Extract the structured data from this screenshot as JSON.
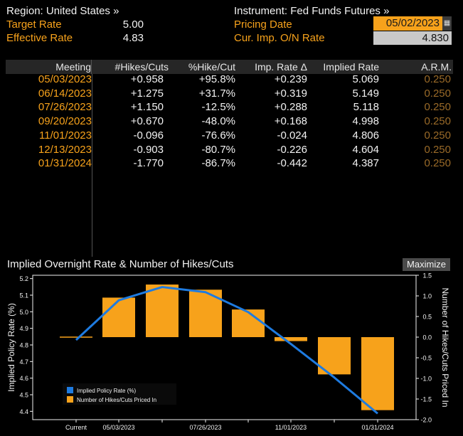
{
  "header": {
    "region": "Region: United States »",
    "instrument": "Instrument: Fed Funds Futures »",
    "target_rate_label": "Target Rate",
    "target_rate_value": "5.00",
    "effective_rate_label": "Effective Rate",
    "effective_rate_value": "4.83",
    "pricing_date_label": "Pricing Date",
    "pricing_date_value": "05/02/2023",
    "cur_imp_label": "Cur. Imp. O/N Rate",
    "cur_imp_value": "4.830"
  },
  "table": {
    "columns": [
      "Meeting",
      "#Hikes/Cuts",
      "%Hike/Cut",
      "Imp. Rate Δ",
      "Implied Rate",
      "A.R.M."
    ],
    "rows": [
      [
        "05/03/2023",
        "+0.958",
        "+95.8%",
        "+0.239",
        "5.069",
        "0.250"
      ],
      [
        "06/14/2023",
        "+1.275",
        "+31.7%",
        "+0.319",
        "5.149",
        "0.250"
      ],
      [
        "07/26/2023",
        "+1.150",
        "-12.5%",
        "+0.288",
        "5.118",
        "0.250"
      ],
      [
        "09/20/2023",
        "+0.670",
        "-48.0%",
        "+0.168",
        "4.998",
        "0.250"
      ],
      [
        "11/01/2023",
        "-0.096",
        "-76.6%",
        "-0.024",
        "4.806",
        "0.250"
      ],
      [
        "12/13/2023",
        "-0.903",
        "-80.7%",
        "-0.226",
        "4.604",
        "0.250"
      ],
      [
        "01/31/2024",
        "-1.770",
        "-86.7%",
        "-0.442",
        "4.387",
        "0.250"
      ]
    ]
  },
  "chart_panel": {
    "title": "Implied Overnight Rate & Number of Hikes/Cuts",
    "maximize_label": "Maximize"
  },
  "chart_data": {
    "type": "bar",
    "categories": [
      "Current",
      "05/03/2023",
      "06/14/2023",
      "07/26/2023",
      "09/20/2023",
      "11/01/2023",
      "12/13/2023",
      "01/31/2024"
    ],
    "x_tick_labels": [
      "Current",
      "05/03/2023",
      "07/26/2023",
      "11/01/2023",
      "01/31/2024"
    ],
    "series": [
      {
        "name": "Implied Policy Rate (%)",
        "type": "line",
        "axis": "left",
        "values": [
          4.83,
          5.069,
          5.149,
          5.118,
          4.998,
          4.806,
          4.604,
          4.387
        ],
        "color": "#1e7be0"
      },
      {
        "name": "Number of Hikes/Cuts Priced In",
        "type": "bar",
        "axis": "right",
        "values": [
          0.0,
          0.958,
          1.275,
          1.15,
          0.67,
          -0.096,
          -0.903,
          -1.77
        ],
        "color": "#f7a21b"
      }
    ],
    "ylabel_left": "Implied Policy Rate (%)",
    "ylabel_right": "Number of Hikes/Cuts Priced In",
    "ylim_left": [
      4.35,
      5.22
    ],
    "ylim_right": [
      -2.0,
      1.5
    ],
    "yticks_left": [
      "5.2",
      "5.1",
      "5.0",
      "4.9",
      "4.8",
      "4.7",
      "4.6",
      "4.5",
      "4.4"
    ],
    "yticks_right": [
      "1.5",
      "1.0",
      "0.5",
      "0.0",
      "-0.5",
      "-1.0",
      "-1.5",
      "-2.0"
    ],
    "legend_position": "bottom-left",
    "grid": false
  }
}
